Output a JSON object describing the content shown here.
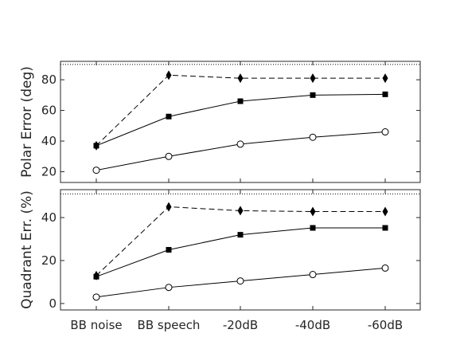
{
  "chart_data": [
    {
      "type": "line",
      "categories": [
        "BB noise",
        "BB speech",
        "-20dB",
        "-40dB",
        "-60dB"
      ],
      "ylabel": "Polar Error (deg)",
      "ylim": [
        13,
        92
      ],
      "yticks": [
        20,
        40,
        60,
        80
      ],
      "reference_line": 90,
      "series": [
        {
          "marker": "diamond",
          "style": "dashed",
          "values": [
            37,
            83,
            81,
            81,
            81
          ]
        },
        {
          "marker": "square",
          "style": "solid",
          "values": [
            37,
            56,
            66,
            70,
            70.5
          ]
        },
        {
          "marker": "circle",
          "style": "solid",
          "values": [
            21,
            30,
            38,
            42.5,
            46
          ]
        }
      ]
    },
    {
      "type": "line",
      "categories": [
        "BB noise",
        "BB speech",
        "-20dB",
        "-40dB",
        "-60dB"
      ],
      "ylabel": "Quadrant Err. (%)",
      "ylim": [
        -3,
        53
      ],
      "yticks": [
        0,
        20,
        40
      ],
      "reference_line": 51,
      "series": [
        {
          "marker": "diamond",
          "style": "dashed",
          "values": [
            13,
            45,
            43.2,
            42.8,
            42.8
          ]
        },
        {
          "marker": "square",
          "style": "solid",
          "values": [
            12.5,
            25,
            32,
            35.2,
            35.2
          ]
        },
        {
          "marker": "circle",
          "style": "solid",
          "values": [
            3,
            7.5,
            10.5,
            13.5,
            16.5
          ]
        }
      ]
    }
  ]
}
